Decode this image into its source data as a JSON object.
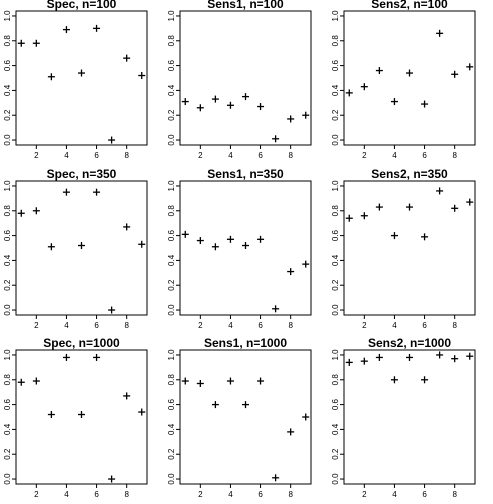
{
  "chart_data": [
    {
      "type": "scatter",
      "title": "Spec, n=100",
      "x": [
        1,
        2,
        3,
        4,
        5,
        6,
        7,
        8,
        9
      ],
      "y": [
        0.78,
        0.78,
        0.51,
        0.89,
        0.54,
        0.9,
        0.0,
        0.66,
        0.52
      ],
      "xticks": [
        "2",
        "4",
        "6",
        "8"
      ],
      "yticks": [
        "0.0",
        "0.2",
        "0.4",
        "0.6",
        "0.8",
        "1.0"
      ],
      "xlim": [
        0.65,
        9.35
      ],
      "ylim": [
        -0.04,
        1.04
      ]
    },
    {
      "type": "scatter",
      "title": "Sens1, n=100",
      "x": [
        1,
        2,
        3,
        4,
        5,
        6,
        7,
        8,
        9
      ],
      "y": [
        0.31,
        0.26,
        0.33,
        0.28,
        0.35,
        0.27,
        0.01,
        0.17,
        0.2
      ],
      "xticks": [
        "2",
        "4",
        "6",
        "8"
      ],
      "yticks": [
        "0.0",
        "0.2",
        "0.4",
        "0.6",
        "0.8",
        "1.0"
      ],
      "xlim": [
        0.65,
        9.35
      ],
      "ylim": [
        -0.04,
        1.04
      ]
    },
    {
      "type": "scatter",
      "title": "Sens2, n=100",
      "x": [
        1,
        2,
        3,
        4,
        5,
        6,
        7,
        8,
        9
      ],
      "y": [
        0.38,
        0.43,
        0.56,
        0.31,
        0.54,
        0.29,
        0.86,
        0.53,
        0.59
      ],
      "xticks": [
        "2",
        "4",
        "6",
        "8"
      ],
      "yticks": [
        "0.0",
        "0.2",
        "0.4",
        "0.6",
        "0.8",
        "1.0"
      ],
      "xlim": [
        0.65,
        9.35
      ],
      "ylim": [
        -0.04,
        1.04
      ]
    },
    {
      "type": "scatter",
      "title": "Spec, n=350",
      "x": [
        1,
        2,
        3,
        4,
        5,
        6,
        7,
        8,
        9
      ],
      "y": [
        0.78,
        0.8,
        0.51,
        0.95,
        0.52,
        0.95,
        0.0,
        0.67,
        0.53
      ],
      "xticks": [
        "2",
        "4",
        "6",
        "8"
      ],
      "yticks": [
        "0.0",
        "0.2",
        "0.4",
        "0.6",
        "0.8",
        "1.0"
      ],
      "xlim": [
        0.65,
        9.35
      ],
      "ylim": [
        -0.04,
        1.04
      ]
    },
    {
      "type": "scatter",
      "title": "Sens1, n=350",
      "x": [
        1,
        2,
        3,
        4,
        5,
        6,
        7,
        8,
        9
      ],
      "y": [
        0.61,
        0.56,
        0.51,
        0.57,
        0.52,
        0.57,
        0.01,
        0.31,
        0.37
      ],
      "xticks": [
        "2",
        "4",
        "6",
        "8"
      ],
      "yticks": [
        "0.0",
        "0.2",
        "0.4",
        "0.6",
        "0.8",
        "1.0"
      ],
      "xlim": [
        0.65,
        9.35
      ],
      "ylim": [
        -0.04,
        1.04
      ]
    },
    {
      "type": "scatter",
      "title": "Sens2, n=350",
      "x": [
        1,
        2,
        3,
        4,
        5,
        6,
        7,
        8,
        9
      ],
      "y": [
        0.74,
        0.76,
        0.83,
        0.6,
        0.83,
        0.59,
        0.96,
        0.82,
        0.87
      ],
      "xticks": [
        "2",
        "4",
        "6",
        "8"
      ],
      "yticks": [
        "0.0",
        "0.2",
        "0.4",
        "0.6",
        "0.8",
        "1.0"
      ],
      "xlim": [
        0.65,
        9.35
      ],
      "ylim": [
        -0.04,
        1.04
      ]
    },
    {
      "type": "scatter",
      "title": "Spec, n=1000",
      "x": [
        1,
        2,
        3,
        4,
        5,
        6,
        7,
        8,
        9
      ],
      "y": [
        0.78,
        0.79,
        0.52,
        0.98,
        0.52,
        0.98,
        0.0,
        0.67,
        0.54
      ],
      "xticks": [
        "2",
        "4",
        "6",
        "8"
      ],
      "yticks": [
        "0.0",
        "0.2",
        "0.4",
        "0.6",
        "0.8",
        "1.0"
      ],
      "xlim": [
        0.65,
        9.35
      ],
      "ylim": [
        -0.04,
        1.04
      ]
    },
    {
      "type": "scatter",
      "title": "Sens1, n=1000",
      "x": [
        1,
        2,
        3,
        4,
        5,
        6,
        7,
        8,
        9
      ],
      "y": [
        0.79,
        0.77,
        0.6,
        0.79,
        0.6,
        0.79,
        0.01,
        0.38,
        0.5
      ],
      "xticks": [
        "2",
        "4",
        "6",
        "8"
      ],
      "yticks": [
        "0.0",
        "0.2",
        "0.4",
        "0.6",
        "0.8",
        "1.0"
      ],
      "xlim": [
        0.65,
        9.35
      ],
      "ylim": [
        -0.04,
        1.04
      ]
    },
    {
      "type": "scatter",
      "title": "Sens2, n=1000",
      "x": [
        1,
        2,
        3,
        4,
        5,
        6,
        7,
        8,
        9
      ],
      "y": [
        0.94,
        0.95,
        0.98,
        0.8,
        0.98,
        0.8,
        1.0,
        0.97,
        0.99
      ],
      "xticks": [
        "2",
        "4",
        "6",
        "8"
      ],
      "yticks": [
        "0.0",
        "0.2",
        "0.4",
        "0.6",
        "0.8",
        "1.0"
      ],
      "xlim": [
        0.65,
        9.35
      ],
      "ylim": [
        -0.04,
        1.04
      ]
    }
  ]
}
